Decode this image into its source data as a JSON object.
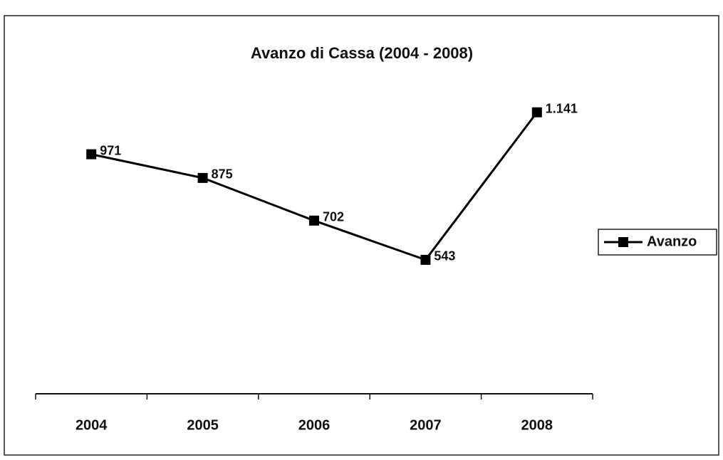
{
  "chart_data": {
    "type": "line",
    "title": "Avanzo di Cassa (2004 - 2008)",
    "categories": [
      "2004",
      "2005",
      "2006",
      "2007",
      "2008"
    ],
    "series": [
      {
        "name": "Avanzo",
        "color": "#000000",
        "values": [
          971,
          875,
          702,
          543,
          1141
        ],
        "value_labels": [
          "971",
          "875",
          "702",
          "543",
          "1.141"
        ]
      }
    ],
    "ylim": [
      0,
      1400
    ],
    "legend": "right"
  }
}
